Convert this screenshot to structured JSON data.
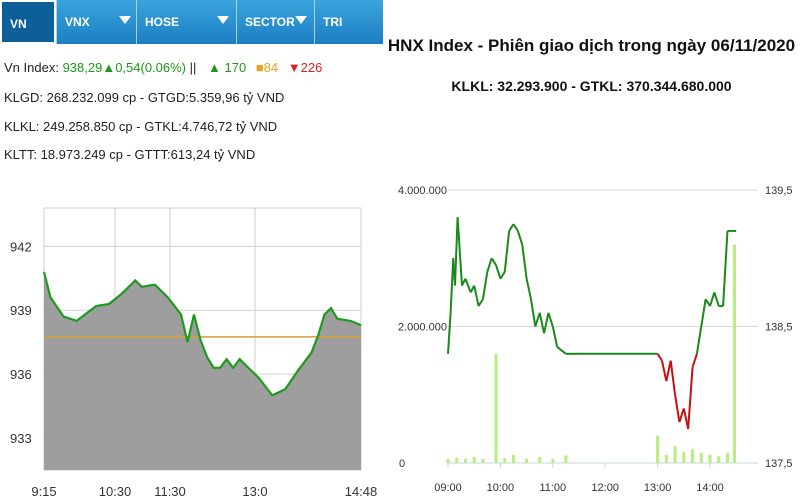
{
  "tabs": [
    {
      "label": "VN INDEX",
      "active": true
    },
    {
      "label": "VNX",
      "caret": true
    },
    {
      "label": "HOSE",
      "caret": true
    },
    {
      "label": "SECTOR",
      "caret": true
    },
    {
      "label": "TRI"
    }
  ],
  "info": {
    "index_label": "Vn Index:",
    "index_value": "938,29",
    "index_change": "▲0,54(0.06%)",
    "separator": "||",
    "advances": "▲ 170",
    "unchanged": "■84",
    "declines": "▼226",
    "line2": "KLGD: 268.232.099 cp - GTGD:5.359,96 tỷ VND",
    "line3": "KLKL: 249.258.850 cp - GTKL:4.746,72 tỷ VND",
    "line4": "KLTT: 18.973.249 cp - GTTT:613,24 tỷ VND"
  },
  "hnx": {
    "title": "HNX Index - Phiên giao dịch trong ngày 06/11/2020",
    "subtitle": "KLKL: 32.293.900 - GTKL: 370.344.680.000"
  },
  "colors": {
    "tab_bar": "#1c7fc2",
    "vn_line": "#1f9a1f",
    "vn_fill": "#999999",
    "reference": "#d8a030",
    "hnx_up": "#1a8a1a",
    "hnx_down": "#c81010",
    "hnx_volume": "#b6ee80"
  },
  "chart_data": [
    {
      "type": "area",
      "name": "VN-Index intraday",
      "x_ticks": [
        "9:15",
        "10:30",
        "11:30",
        "13:0",
        "14:48"
      ],
      "y_ticks": [
        942,
        939,
        936,
        933
      ],
      "ylim": [
        931.5,
        943.8
      ],
      "reference": 937.75,
      "grid": true,
      "points": [
        {
          "t": "9:15",
          "v": 940.8
        },
        {
          "t": "9:20",
          "v": 939.6
        },
        {
          "t": "9:30",
          "v": 938.7
        },
        {
          "t": "9:40",
          "v": 938.5
        },
        {
          "t": "9:55",
          "v": 939.2
        },
        {
          "t": "10:05",
          "v": 939.3
        },
        {
          "t": "10:15",
          "v": 939.8
        },
        {
          "t": "10:25",
          "v": 940.4
        },
        {
          "t": "10:30",
          "v": 940.1
        },
        {
          "t": "10:40",
          "v": 940.2
        },
        {
          "t": "10:50",
          "v": 939.6
        },
        {
          "t": "11:00",
          "v": 938.8
        },
        {
          "t": "11:05",
          "v": 937.5
        },
        {
          "t": "11:10",
          "v": 938.8
        },
        {
          "t": "11:15",
          "v": 937.6
        },
        {
          "t": "11:20",
          "v": 936.8
        },
        {
          "t": "11:25",
          "v": 936.3
        },
        {
          "t": "11:30",
          "v": 936.3
        },
        {
          "t": "13:00",
          "v": 936.3
        },
        {
          "t": "13:05",
          "v": 936.7
        },
        {
          "t": "13:10",
          "v": 936.3
        },
        {
          "t": "13:15",
          "v": 936.7
        },
        {
          "t": "13:20",
          "v": 936.4
        },
        {
          "t": "13:30",
          "v": 935.8
        },
        {
          "t": "13:40",
          "v": 935.0
        },
        {
          "t": "13:50",
          "v": 935.3
        },
        {
          "t": "14:00",
          "v": 936.2
        },
        {
          "t": "14:10",
          "v": 937.0
        },
        {
          "t": "14:15",
          "v": 937.8
        },
        {
          "t": "14:20",
          "v": 938.8
        },
        {
          "t": "14:25",
          "v": 939.1
        },
        {
          "t": "14:30",
          "v": 938.6
        },
        {
          "t": "14:40",
          "v": 938.5
        },
        {
          "t": "14:48",
          "v": 938.3
        }
      ]
    },
    {
      "type": "line",
      "name": "HNX-Index intraday",
      "x_ticks": [
        "09:00",
        "10:00",
        "11:00",
        "12:00",
        "13:00",
        "14:00"
      ],
      "y_left_ticks": [
        "4.000.000",
        "2.000.000",
        "0"
      ],
      "y_right_ticks": [
        "139,5",
        "138,5",
        "137,5"
      ],
      "ylim_right": [
        137.5,
        139.5
      ],
      "ylim_left": [
        0,
        4000000
      ],
      "points": [
        {
          "t": "09:00",
          "v": 138.3
        },
        {
          "t": "09:03",
          "v": 138.6
        },
        {
          "t": "09:06",
          "v": 139.0
        },
        {
          "t": "09:08",
          "v": 138.8
        },
        {
          "t": "09:11",
          "v": 139.3
        },
        {
          "t": "09:13",
          "v": 139.1
        },
        {
          "t": "09:16",
          "v": 138.8
        },
        {
          "t": "09:20",
          "v": 138.85
        },
        {
          "t": "09:26",
          "v": 138.75
        },
        {
          "t": "09:30",
          "v": 138.8
        },
        {
          "t": "09:35",
          "v": 138.65
        },
        {
          "t": "09:40",
          "v": 138.7
        },
        {
          "t": "09:45",
          "v": 138.9
        },
        {
          "t": "09:50",
          "v": 139.0
        },
        {
          "t": "09:55",
          "v": 138.95
        },
        {
          "t": "10:00",
          "v": 138.85
        },
        {
          "t": "10:05",
          "v": 138.9
        },
        {
          "t": "10:10",
          "v": 139.2
        },
        {
          "t": "10:15",
          "v": 139.25
        },
        {
          "t": "10:20",
          "v": 139.2
        },
        {
          "t": "10:25",
          "v": 139.1
        },
        {
          "t": "10:30",
          "v": 138.85
        },
        {
          "t": "10:35",
          "v": 138.7
        },
        {
          "t": "10:40",
          "v": 138.5
        },
        {
          "t": "10:45",
          "v": 138.6
        },
        {
          "t": "10:50",
          "v": 138.45
        },
        {
          "t": "10:55",
          "v": 138.6
        },
        {
          "t": "11:00",
          "v": 138.5
        },
        {
          "t": "11:05",
          "v": 138.35
        },
        {
          "t": "11:15",
          "v": 138.3
        },
        {
          "t": "11:30",
          "v": 138.3
        },
        {
          "t": "13:00",
          "v": 138.3
        },
        {
          "t": "13:05",
          "v": 138.25
        },
        {
          "t": "13:10",
          "v": 138.1
        },
        {
          "t": "13:15",
          "v": 138.25
        },
        {
          "t": "13:20",
          "v": 138.0
        },
        {
          "t": "13:25",
          "v": 137.8
        },
        {
          "t": "13:30",
          "v": 137.9
        },
        {
          "t": "13:35",
          "v": 137.75
        },
        {
          "t": "13:40",
          "v": 138.2
        },
        {
          "t": "13:45",
          "v": 138.3
        },
        {
          "t": "13:50",
          "v": 138.5
        },
        {
          "t": "13:55",
          "v": 138.7
        },
        {
          "t": "14:00",
          "v": 138.65
        },
        {
          "t": "14:05",
          "v": 138.75
        },
        {
          "t": "14:10",
          "v": 138.65
        },
        {
          "t": "14:15",
          "v": 138.65
        },
        {
          "t": "14:20",
          "v": 139.2
        },
        {
          "t": "14:25",
          "v": 139.2
        },
        {
          "t": "14:30",
          "v": 139.2
        }
      ],
      "volume": [
        {
          "t": "09:00",
          "v": 60000
        },
        {
          "t": "09:10",
          "v": 80000
        },
        {
          "t": "09:20",
          "v": 60000
        },
        {
          "t": "09:30",
          "v": 90000
        },
        {
          "t": "09:40",
          "v": 60000
        },
        {
          "t": "09:55",
          "v": 1600000
        },
        {
          "t": "10:05",
          "v": 70000
        },
        {
          "t": "10:15",
          "v": 120000
        },
        {
          "t": "10:30",
          "v": 60000
        },
        {
          "t": "10:45",
          "v": 90000
        },
        {
          "t": "11:00",
          "v": 60000
        },
        {
          "t": "11:15",
          "v": 110000
        },
        {
          "t": "13:00",
          "v": 400000
        },
        {
          "t": "13:10",
          "v": 120000
        },
        {
          "t": "13:20",
          "v": 250000
        },
        {
          "t": "13:30",
          "v": 160000
        },
        {
          "t": "13:40",
          "v": 200000
        },
        {
          "t": "13:50",
          "v": 150000
        },
        {
          "t": "14:00",
          "v": 120000
        },
        {
          "t": "14:10",
          "v": 100000
        },
        {
          "t": "14:20",
          "v": 150000
        },
        {
          "t": "14:28",
          "v": 3200000
        }
      ]
    }
  ]
}
